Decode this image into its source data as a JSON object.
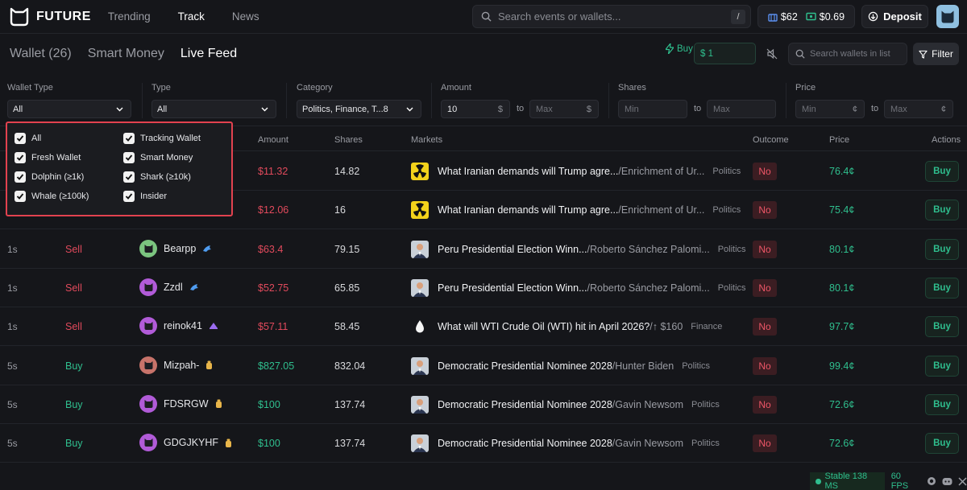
{
  "brand": {
    "name": "FUTURE"
  },
  "nav": [
    "Trending",
    "Track",
    "News"
  ],
  "nav_active": "Track",
  "search": {
    "placeholder": "Search events or wallets...",
    "shortcut": "/"
  },
  "balances": {
    "portfolio": "$62",
    "cash": "$0.69"
  },
  "deposit_label": "Deposit",
  "subtabs": [
    "Wallet (26)",
    "Smart Money",
    "Live Feed"
  ],
  "subtab_active": "Live Feed",
  "quick_buy": {
    "label": "Buy",
    "value": "$ 1"
  },
  "wallet_search_placeholder": "Search wallets in list",
  "filter_label": "Filter",
  "filters": {
    "wallet_type": {
      "label": "Wallet Type",
      "value": "All"
    },
    "type": {
      "label": "Type",
      "value": "All"
    },
    "category": {
      "label": "Category",
      "value": "Politics, Finance, T...8"
    },
    "amount": {
      "label": "Amount",
      "min": "10",
      "max_placeholder": "Max",
      "unit": "$",
      "to": "to"
    },
    "shares": {
      "label": "Shares",
      "min_placeholder": "Min",
      "max_placeholder": "Max",
      "to": "to"
    },
    "price": {
      "label": "Price",
      "min_placeholder": "Min",
      "max_placeholder": "Max",
      "unit": "¢",
      "to": "to"
    }
  },
  "wallet_type_options": [
    {
      "label": "All",
      "checked": true
    },
    {
      "label": "Tracking Wallet",
      "checked": true
    },
    {
      "label": "Fresh Wallet",
      "checked": true
    },
    {
      "label": "Smart Money",
      "checked": true
    },
    {
      "label": "Dolphin (≥1k)",
      "checked": true
    },
    {
      "label": "Shark (≥10k)",
      "checked": true
    },
    {
      "label": "Whale (≥100k)",
      "checked": true
    },
    {
      "label": "Insider",
      "checked": true
    }
  ],
  "table": {
    "headers": {
      "amount": "Amount",
      "shares": "Shares",
      "markets": "Markets",
      "outcome": "Outcome",
      "price": "Price",
      "actions": "Actions"
    },
    "buy_label": "Buy",
    "rows": [
      {
        "time": "",
        "side": "",
        "wallet": "",
        "amount": "$11.32",
        "shares": "14.82",
        "market": "What Iranian demands will Trump agre...",
        "sub": "/Enrichment of Ur...",
        "category": "Politics",
        "outcome": "No",
        "price": "76.4¢",
        "img": "radiation",
        "tone": "sell"
      },
      {
        "time": "",
        "side": "",
        "wallet": "",
        "amount": "$12.06",
        "shares": "16",
        "market": "What Iranian demands will Trump agre...",
        "sub": "/Enrichment of Ur...",
        "category": "Politics",
        "outcome": "No",
        "price": "75.4¢",
        "img": "radiation",
        "tone": "sell"
      },
      {
        "time": "1s",
        "side": "Sell",
        "wallet": "Bearpp",
        "badge": "dolphin-icon",
        "avatar": "#7bc47f",
        "amount": "$63.4",
        "shares": "79.15",
        "market": "Peru Presidential Election Winn...",
        "sub": "/Roberto Sánchez Palomi...",
        "category": "Politics",
        "outcome": "No",
        "price": "80.1¢",
        "img": "person",
        "tone": "sell"
      },
      {
        "time": "1s",
        "side": "Sell",
        "wallet": "Zzdl",
        "badge": "dolphin-icon",
        "avatar": "#b15bd8",
        "amount": "$52.75",
        "shares": "65.85",
        "market": "Peru Presidential Election Winn...",
        "sub": "/Roberto Sánchez Palomi...",
        "category": "Politics",
        "outcome": "No",
        "price": "80.1¢",
        "img": "person",
        "tone": "sell"
      },
      {
        "time": "1s",
        "side": "Sell",
        "wallet": "reinok41",
        "badge": "fresh-icon",
        "avatar": "#b15bd8",
        "amount": "$57.11",
        "shares": "58.45",
        "market": "What will WTI Crude Oil (WTI) hit in April 2026?",
        "sub": "/↑ $160",
        "category": "Finance",
        "outcome": "No",
        "price": "97.7¢",
        "img": "oil",
        "tone": "sell"
      },
      {
        "time": "5s",
        "side": "Buy",
        "wallet": "Mizpah-",
        "badge": "money-icon",
        "avatar": "#c7736a",
        "amount": "$827.05",
        "shares": "832.04",
        "market": "Democratic Presidential Nominee 2028",
        "sub": "/Hunter Biden",
        "category": "Politics",
        "outcome": "No",
        "price": "99.4¢",
        "img": "person",
        "tone": "buy"
      },
      {
        "time": "5s",
        "side": "Buy",
        "wallet": "FDSRGW",
        "badge": "money-icon",
        "avatar": "#b15bd8",
        "amount": "$100",
        "shares": "137.74",
        "market": "Democratic Presidential Nominee 2028",
        "sub": "/Gavin Newsom",
        "category": "Politics",
        "outcome": "No",
        "price": "72.6¢",
        "img": "person",
        "tone": "buy"
      },
      {
        "time": "5s",
        "side": "Buy",
        "wallet": "GDGJKYHF",
        "badge": "money-icon",
        "avatar": "#b15bd8",
        "amount": "$100",
        "shares": "137.74",
        "market": "Democratic Presidential Nominee 2028",
        "sub": "/Gavin Newsom",
        "category": "Politics",
        "outcome": "No",
        "price": "72.6¢",
        "img": "person",
        "tone": "buy"
      }
    ]
  },
  "status": {
    "stable": "Stable 138 MS",
    "fps": "60 FPS"
  }
}
